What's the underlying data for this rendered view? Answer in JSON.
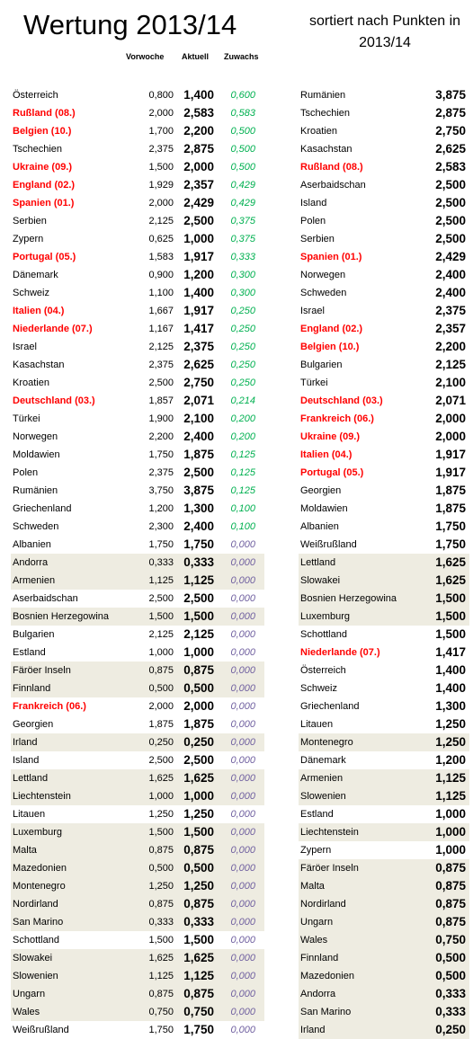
{
  "title": "Wertung 2013/14",
  "subtitle": "sortiert nach Punkten in 2013/14",
  "headers": {
    "prev": "Vorwoche",
    "current": "Aktuell",
    "growth": "Zuwachs"
  },
  "colors": {
    "highlight_red": "#ff0000",
    "growth_green": "#00b050",
    "growth_zero": "#7060a0",
    "row_shade": "#eeece1"
  },
  "left_rows": [
    {
      "name": "Österreich",
      "prev": "0,800",
      "current": "1,400",
      "growth": "0,600",
      "red": false,
      "shaded": false
    },
    {
      "name": "Rußland (08.)",
      "prev": "2,000",
      "current": "2,583",
      "growth": "0,583",
      "red": true,
      "shaded": false
    },
    {
      "name": "Belgien (10.)",
      "prev": "1,700",
      "current": "2,200",
      "growth": "0,500",
      "red": true,
      "shaded": false
    },
    {
      "name": "Tschechien",
      "prev": "2,375",
      "current": "2,875",
      "growth": "0,500",
      "red": false,
      "shaded": false
    },
    {
      "name": "Ukraine (09.)",
      "prev": "1,500",
      "current": "2,000",
      "growth": "0,500",
      "red": true,
      "shaded": false
    },
    {
      "name": "England (02.)",
      "prev": "1,929",
      "current": "2,357",
      "growth": "0,429",
      "red": true,
      "shaded": false
    },
    {
      "name": "Spanien (01.)",
      "prev": "2,000",
      "current": "2,429",
      "growth": "0,429",
      "red": true,
      "shaded": false
    },
    {
      "name": "Serbien",
      "prev": "2,125",
      "current": "2,500",
      "growth": "0,375",
      "red": false,
      "shaded": false
    },
    {
      "name": "Zypern",
      "prev": "0,625",
      "current": "1,000",
      "growth": "0,375",
      "red": false,
      "shaded": false
    },
    {
      "name": "Portugal (05.)",
      "prev": "1,583",
      "current": "1,917",
      "growth": "0,333",
      "red": true,
      "shaded": false
    },
    {
      "name": "Dänemark",
      "prev": "0,900",
      "current": "1,200",
      "growth": "0,300",
      "red": false,
      "shaded": false
    },
    {
      "name": "Schweiz",
      "prev": "1,100",
      "current": "1,400",
      "growth": "0,300",
      "red": false,
      "shaded": false
    },
    {
      "name": "Italien (04.)",
      "prev": "1,667",
      "current": "1,917",
      "growth": "0,250",
      "red": true,
      "shaded": false
    },
    {
      "name": "Niederlande (07.)",
      "prev": "1,167",
      "current": "1,417",
      "growth": "0,250",
      "red": true,
      "shaded": false
    },
    {
      "name": "Israel",
      "prev": "2,125",
      "current": "2,375",
      "growth": "0,250",
      "red": false,
      "shaded": false
    },
    {
      "name": "Kasachstan",
      "prev": "2,375",
      "current": "2,625",
      "growth": "0,250",
      "red": false,
      "shaded": false
    },
    {
      "name": "Kroatien",
      "prev": "2,500",
      "current": "2,750",
      "growth": "0,250",
      "red": false,
      "shaded": false
    },
    {
      "name": "Deutschland (03.)",
      "prev": "1,857",
      "current": "2,071",
      "growth": "0,214",
      "red": true,
      "shaded": false
    },
    {
      "name": "Türkei",
      "prev": "1,900",
      "current": "2,100",
      "growth": "0,200",
      "red": false,
      "shaded": false
    },
    {
      "name": "Norwegen",
      "prev": "2,200",
      "current": "2,400",
      "growth": "0,200",
      "red": false,
      "shaded": false
    },
    {
      "name": "Moldawien",
      "prev": "1,750",
      "current": "1,875",
      "growth": "0,125",
      "red": false,
      "shaded": false
    },
    {
      "name": "Polen",
      "prev": "2,375",
      "current": "2,500",
      "growth": "0,125",
      "red": false,
      "shaded": false
    },
    {
      "name": "Rumänien",
      "prev": "3,750",
      "current": "3,875",
      "growth": "0,125",
      "red": false,
      "shaded": false
    },
    {
      "name": "Griechenland",
      "prev": "1,200",
      "current": "1,300",
      "growth": "0,100",
      "red": false,
      "shaded": false
    },
    {
      "name": "Schweden",
      "prev": "2,300",
      "current": "2,400",
      "growth": "0,100",
      "red": false,
      "shaded": false
    },
    {
      "name": "Albanien",
      "prev": "1,750",
      "current": "1,750",
      "growth": "0,000",
      "red": false,
      "shaded": false
    },
    {
      "name": "Andorra",
      "prev": "0,333",
      "current": "0,333",
      "growth": "0,000",
      "red": false,
      "shaded": true
    },
    {
      "name": "Armenien",
      "prev": "1,125",
      "current": "1,125",
      "growth": "0,000",
      "red": false,
      "shaded": true
    },
    {
      "name": "Aserbaidschan",
      "prev": "2,500",
      "current": "2,500",
      "growth": "0,000",
      "red": false,
      "shaded": false
    },
    {
      "name": "Bosnien Herzegowina",
      "prev": "1,500",
      "current": "1,500",
      "growth": "0,000",
      "red": false,
      "shaded": true
    },
    {
      "name": "Bulgarien",
      "prev": "2,125",
      "current": "2,125",
      "growth": "0,000",
      "red": false,
      "shaded": false
    },
    {
      "name": "Estland",
      "prev": "1,000",
      "current": "1,000",
      "growth": "0,000",
      "red": false,
      "shaded": false
    },
    {
      "name": "Färöer Inseln",
      "prev": "0,875",
      "current": "0,875",
      "growth": "0,000",
      "red": false,
      "shaded": true
    },
    {
      "name": "Finnland",
      "prev": "0,500",
      "current": "0,500",
      "growth": "0,000",
      "red": false,
      "shaded": true
    },
    {
      "name": "Frankreich (06.)",
      "prev": "2,000",
      "current": "2,000",
      "growth": "0,000",
      "red": true,
      "shaded": false
    },
    {
      "name": "Georgien",
      "prev": "1,875",
      "current": "1,875",
      "growth": "0,000",
      "red": false,
      "shaded": false
    },
    {
      "name": "Irland",
      "prev": "0,250",
      "current": "0,250",
      "growth": "0,000",
      "red": false,
      "shaded": true
    },
    {
      "name": "Island",
      "prev": "2,500",
      "current": "2,500",
      "growth": "0,000",
      "red": false,
      "shaded": false
    },
    {
      "name": "Lettland",
      "prev": "1,625",
      "current": "1,625",
      "growth": "0,000",
      "red": false,
      "shaded": true
    },
    {
      "name": "Liechtenstein",
      "prev": "1,000",
      "current": "1,000",
      "growth": "0,000",
      "red": false,
      "shaded": true
    },
    {
      "name": "Litauen",
      "prev": "1,250",
      "current": "1,250",
      "growth": "0,000",
      "red": false,
      "shaded": false
    },
    {
      "name": "Luxemburg",
      "prev": "1,500",
      "current": "1,500",
      "growth": "0,000",
      "red": false,
      "shaded": true
    },
    {
      "name": "Malta",
      "prev": "0,875",
      "current": "0,875",
      "growth": "0,000",
      "red": false,
      "shaded": true
    },
    {
      "name": "Mazedonien",
      "prev": "0,500",
      "current": "0,500",
      "growth": "0,000",
      "red": false,
      "shaded": true
    },
    {
      "name": "Montenegro",
      "prev": "1,250",
      "current": "1,250",
      "growth": "0,000",
      "red": false,
      "shaded": true
    },
    {
      "name": "Nordirland",
      "prev": "0,875",
      "current": "0,875",
      "growth": "0,000",
      "red": false,
      "shaded": true
    },
    {
      "name": "San Marino",
      "prev": "0,333",
      "current": "0,333",
      "growth": "0,000",
      "red": false,
      "shaded": true
    },
    {
      "name": "Schottland",
      "prev": "1,500",
      "current": "1,500",
      "growth": "0,000",
      "red": false,
      "shaded": false
    },
    {
      "name": "Slowakei",
      "prev": "1,625",
      "current": "1,625",
      "growth": "0,000",
      "red": false,
      "shaded": true
    },
    {
      "name": "Slowenien",
      "prev": "1,125",
      "current": "1,125",
      "growth": "0,000",
      "red": false,
      "shaded": true
    },
    {
      "name": "Ungarn",
      "prev": "0,875",
      "current": "0,875",
      "growth": "0,000",
      "red": false,
      "shaded": true
    },
    {
      "name": "Wales",
      "prev": "0,750",
      "current": "0,750",
      "growth": "0,000",
      "red": false,
      "shaded": true
    },
    {
      "name": "Weißrußland",
      "prev": "1,750",
      "current": "1,750",
      "growth": "0,000",
      "red": false,
      "shaded": false
    }
  ],
  "right_rows": [
    {
      "name": "Rumänien",
      "value": "3,875",
      "red": false,
      "shaded": false
    },
    {
      "name": "Tschechien",
      "value": "2,875",
      "red": false,
      "shaded": false
    },
    {
      "name": "Kroatien",
      "value": "2,750",
      "red": false,
      "shaded": false
    },
    {
      "name": "Kasachstan",
      "value": "2,625",
      "red": false,
      "shaded": false
    },
    {
      "name": "Rußland (08.)",
      "value": "2,583",
      "red": true,
      "shaded": false
    },
    {
      "name": "Aserbaidschan",
      "value": "2,500",
      "red": false,
      "shaded": false
    },
    {
      "name": "Island",
      "value": "2,500",
      "red": false,
      "shaded": false
    },
    {
      "name": "Polen",
      "value": "2,500",
      "red": false,
      "shaded": false
    },
    {
      "name": "Serbien",
      "value": "2,500",
      "red": false,
      "shaded": false
    },
    {
      "name": "Spanien (01.)",
      "value": "2,429",
      "red": true,
      "shaded": false
    },
    {
      "name": "Norwegen",
      "value": "2,400",
      "red": false,
      "shaded": false
    },
    {
      "name": "Schweden",
      "value": "2,400",
      "red": false,
      "shaded": false
    },
    {
      "name": "Israel",
      "value": "2,375",
      "red": false,
      "shaded": false
    },
    {
      "name": "England (02.)",
      "value": "2,357",
      "red": true,
      "shaded": false
    },
    {
      "name": "Belgien (10.)",
      "value": "2,200",
      "red": true,
      "shaded": false
    },
    {
      "name": "Bulgarien",
      "value": "2,125",
      "red": false,
      "shaded": false
    },
    {
      "name": "Türkei",
      "value": "2,100",
      "red": false,
      "shaded": false
    },
    {
      "name": "Deutschland (03.)",
      "value": "2,071",
      "red": true,
      "shaded": false
    },
    {
      "name": "Frankreich (06.)",
      "value": "2,000",
      "red": true,
      "shaded": false
    },
    {
      "name": "Ukraine (09.)",
      "value": "2,000",
      "red": true,
      "shaded": false
    },
    {
      "name": "Italien (04.)",
      "value": "1,917",
      "red": true,
      "shaded": false
    },
    {
      "name": "Portugal (05.)",
      "value": "1,917",
      "red": true,
      "shaded": false
    },
    {
      "name": "Georgien",
      "value": "1,875",
      "red": false,
      "shaded": false
    },
    {
      "name": "Moldawien",
      "value": "1,875",
      "red": false,
      "shaded": false
    },
    {
      "name": "Albanien",
      "value": "1,750",
      "red": false,
      "shaded": false
    },
    {
      "name": "Weißrußland",
      "value": "1,750",
      "red": false,
      "shaded": false
    },
    {
      "name": "Lettland",
      "value": "1,625",
      "red": false,
      "shaded": true
    },
    {
      "name": "Slowakei",
      "value": "1,625",
      "red": false,
      "shaded": true
    },
    {
      "name": "Bosnien Herzegowina",
      "value": "1,500",
      "red": false,
      "shaded": true
    },
    {
      "name": "Luxemburg",
      "value": "1,500",
      "red": false,
      "shaded": true
    },
    {
      "name": "Schottland",
      "value": "1,500",
      "red": false,
      "shaded": false
    },
    {
      "name": "Niederlande (07.)",
      "value": "1,417",
      "red": true,
      "shaded": false
    },
    {
      "name": "Österreich",
      "value": "1,400",
      "red": false,
      "shaded": false
    },
    {
      "name": "Schweiz",
      "value": "1,400",
      "red": false,
      "shaded": false
    },
    {
      "name": "Griechenland",
      "value": "1,300",
      "red": false,
      "shaded": false
    },
    {
      "name": "Litauen",
      "value": "1,250",
      "red": false,
      "shaded": false
    },
    {
      "name": "Montenegro",
      "value": "1,250",
      "red": false,
      "shaded": true
    },
    {
      "name": "Dänemark",
      "value": "1,200",
      "red": false,
      "shaded": false
    },
    {
      "name": "Armenien",
      "value": "1,125",
      "red": false,
      "shaded": true
    },
    {
      "name": "Slowenien",
      "value": "1,125",
      "red": false,
      "shaded": true
    },
    {
      "name": "Estland",
      "value": "1,000",
      "red": false,
      "shaded": false
    },
    {
      "name": "Liechtenstein",
      "value": "1,000",
      "red": false,
      "shaded": true
    },
    {
      "name": "Zypern",
      "value": "1,000",
      "red": false,
      "shaded": false
    },
    {
      "name": "Färöer Inseln",
      "value": "0,875",
      "red": false,
      "shaded": true
    },
    {
      "name": "Malta",
      "value": "0,875",
      "red": false,
      "shaded": true
    },
    {
      "name": "Nordirland",
      "value": "0,875",
      "red": false,
      "shaded": true
    },
    {
      "name": "Ungarn",
      "value": "0,875",
      "red": false,
      "shaded": true
    },
    {
      "name": "Wales",
      "value": "0,750",
      "red": false,
      "shaded": true
    },
    {
      "name": "Finnland",
      "value": "0,500",
      "red": false,
      "shaded": true
    },
    {
      "name": "Mazedonien",
      "value": "0,500",
      "red": false,
      "shaded": true
    },
    {
      "name": "Andorra",
      "value": "0,333",
      "red": false,
      "shaded": true
    },
    {
      "name": "San Marino",
      "value": "0,333",
      "red": false,
      "shaded": true
    },
    {
      "name": "Irland",
      "value": "0,250",
      "red": false,
      "shaded": true
    }
  ]
}
